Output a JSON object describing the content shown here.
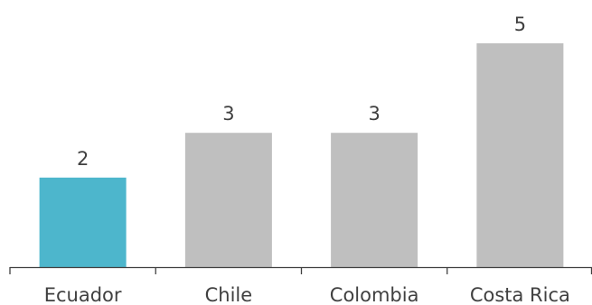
{
  "chart_data": {
    "type": "bar",
    "categories": [
      "Ecuador",
      "Chile",
      "Colombia",
      "Costa Rica"
    ],
    "values": [
      2,
      3,
      3,
      5
    ],
    "value_labels": [
      "2",
      "3",
      "3",
      "5"
    ],
    "title": "",
    "xlabel": "",
    "ylabel": "",
    "ylim": [
      0,
      5
    ],
    "grid": false,
    "legend": "none",
    "colors": {
      "highlight": "#4db6cc",
      "default": "#bfbfbf",
      "axis": "#404040",
      "text": "#404040"
    },
    "highlight_index": 0
  }
}
